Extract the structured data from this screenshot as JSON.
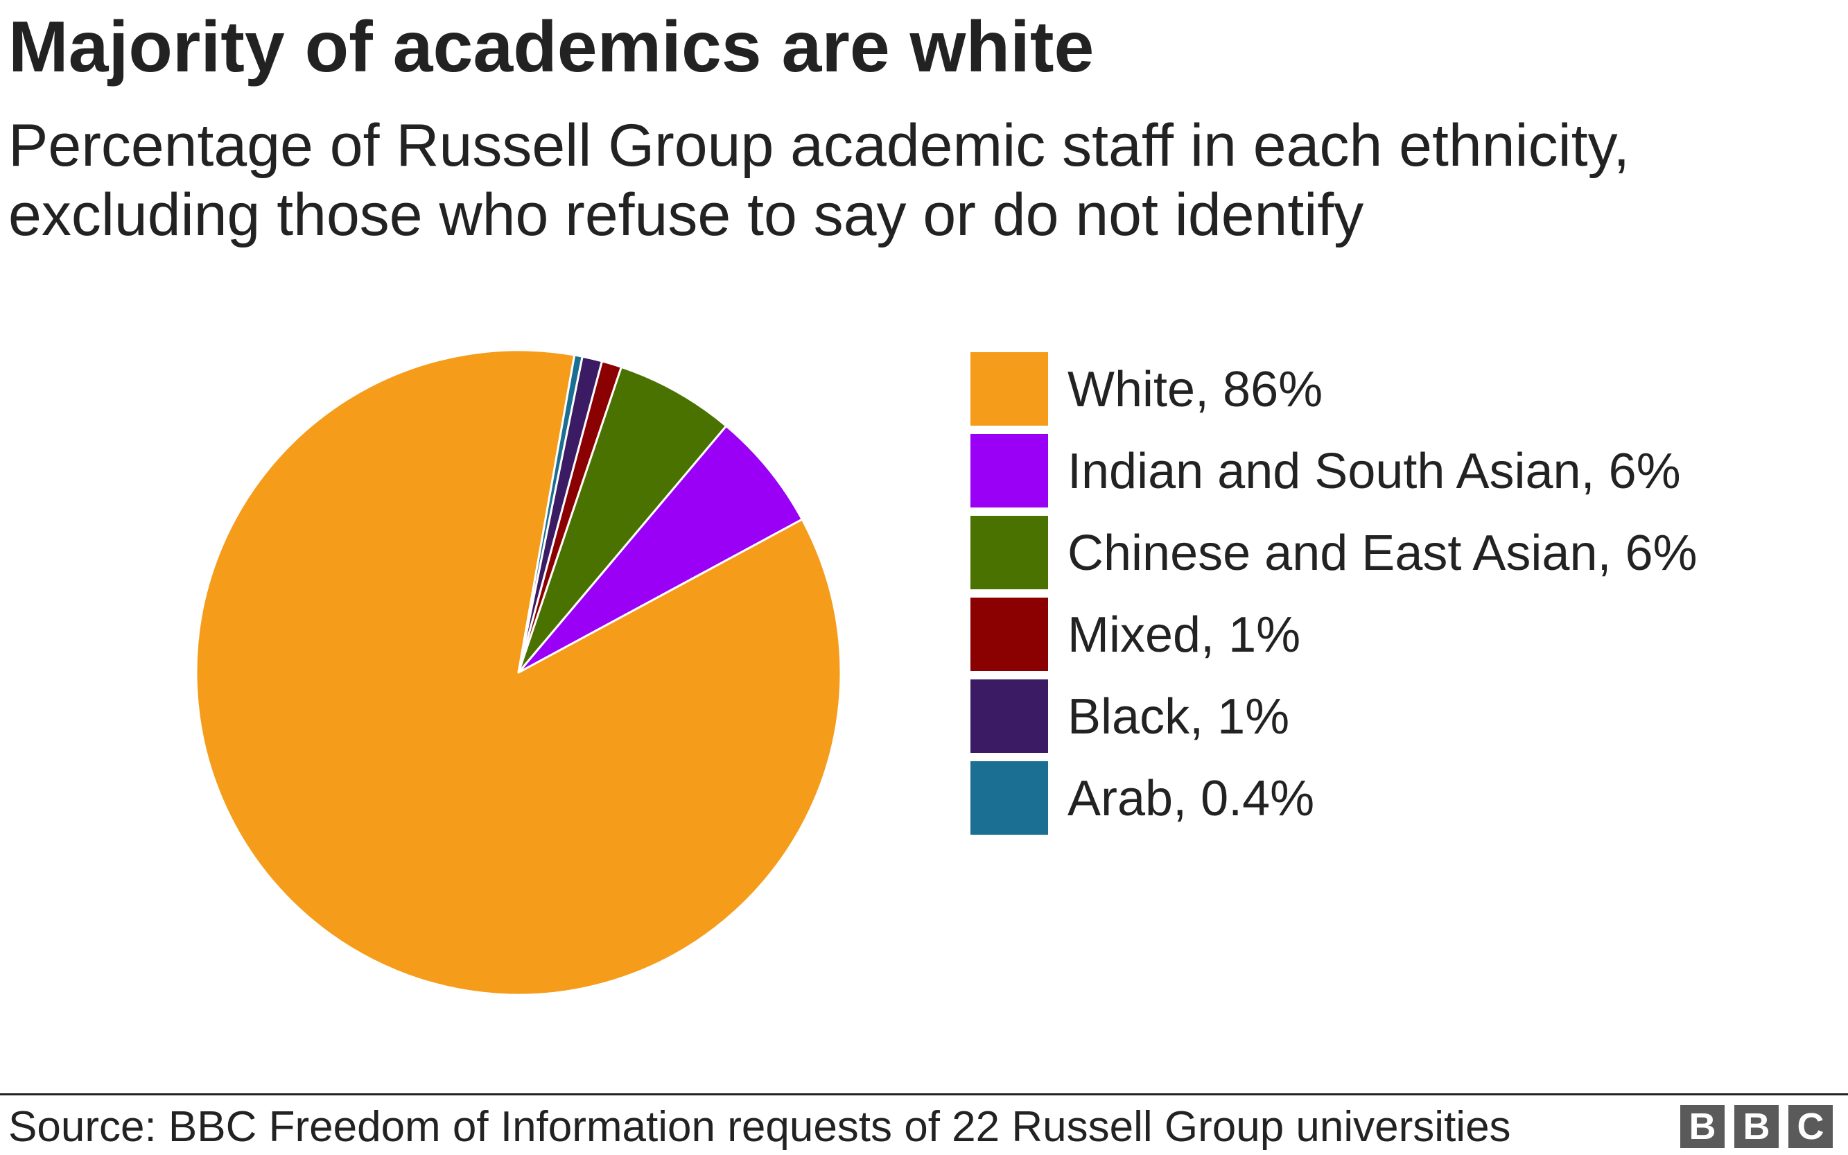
{
  "header": {
    "title": "Majority of academics are white",
    "subtitle": "Percentage of Russell Group academic staff in each ethnicity, excluding those who refuse to say or do not identify"
  },
  "footer": {
    "source": "Source: BBC Freedom of Information requests of 22 Russell Group universities",
    "logo": [
      "B",
      "B",
      "C"
    ]
  },
  "chart_data": {
    "type": "pie",
    "title": "Majority of academics are white",
    "subtitle": "Percentage of Russell Group academic staff in each ethnicity, excluding those who refuse to say or do not identify",
    "legend_position": "right",
    "slices": [
      {
        "name": "White",
        "value": 86,
        "label": "White, 86%",
        "color": "#f59c1a"
      },
      {
        "name": "Indian and South Asian",
        "value": 6,
        "label": "Indian and South Asian, 6%",
        "color": "#9900f5"
      },
      {
        "name": "Chinese and East Asian",
        "value": 6,
        "label": "Chinese and East Asian, 6%",
        "color": "#4a7200"
      },
      {
        "name": "Mixed",
        "value": 1,
        "label": "Mixed, 1%",
        "color": "#8b0000"
      },
      {
        "name": "Black",
        "value": 1,
        "label": "Black, 1%",
        "color": "#3b1b64"
      },
      {
        "name": "Arab",
        "value": 0.4,
        "label": "Arab, 0.4%",
        "color": "#1b6f93"
      }
    ]
  }
}
